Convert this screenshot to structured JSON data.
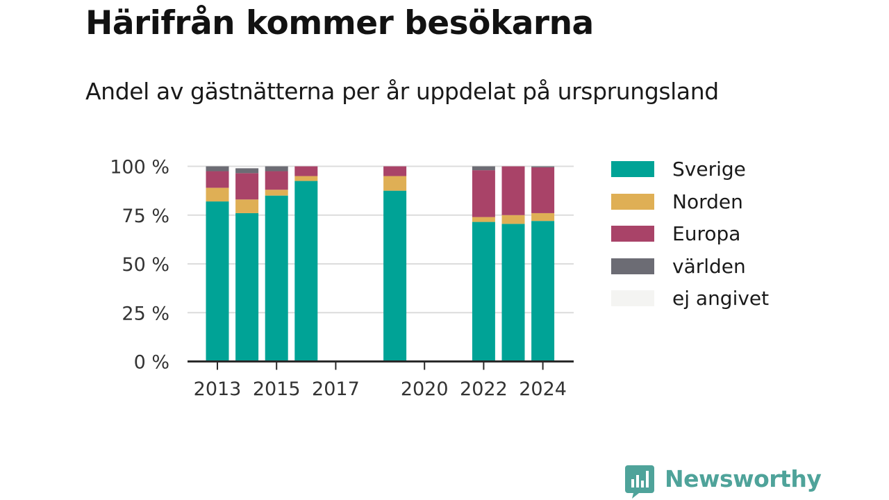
{
  "header": {
    "title": "Härifrån kommer besökarna",
    "subtitle": "Andel av gästnätterna per år uppdelat på ursprungsland"
  },
  "brand": {
    "name": "Newsworthy",
    "icon": "newsworthy-logo-icon",
    "color": "#4fa39a"
  },
  "chart_data": {
    "type": "bar",
    "stacked": true,
    "x": [
      2013,
      2014,
      2015,
      2016,
      2017,
      2018,
      2019,
      2020,
      2021,
      2022,
      2023,
      2024
    ],
    "x_tick_labels": [
      "2013",
      "2015",
      "2017",
      "2020",
      "2022",
      "2024"
    ],
    "x_tick_values": [
      2013,
      2015,
      2017,
      2020,
      2022,
      2024
    ],
    "y_tick_labels": [
      "0 %",
      "25 %",
      "50 %",
      "75 %",
      "100 %"
    ],
    "y_tick_values": [
      0,
      25,
      50,
      75,
      100
    ],
    "ylim": [
      0,
      100
    ],
    "grid": true,
    "legend_position": "right",
    "series": [
      {
        "name": "Sverige",
        "color": "#00a396",
        "values": [
          82,
          76,
          85,
          92.5,
          null,
          null,
          87.5,
          null,
          null,
          71.5,
          70.5,
          72
        ]
      },
      {
        "name": "Norden",
        "color": "#dfaf55",
        "values": [
          7,
          7,
          3,
          2.5,
          null,
          null,
          7.5,
          null,
          null,
          2.5,
          4.5,
          4
        ]
      },
      {
        "name": "Europa",
        "color": "#a94368",
        "values": [
          8.5,
          13.5,
          9.5,
          5,
          null,
          null,
          5,
          null,
          null,
          24,
          25,
          23.5
        ]
      },
      {
        "name": "världen",
        "color": "#6c6c74",
        "values": [
          2.5,
          2.5,
          2.5,
          0,
          null,
          null,
          0,
          null,
          null,
          2,
          0,
          0.5
        ]
      },
      {
        "name": "ej angivet",
        "color": "#f4f4f2",
        "values": [
          0,
          0,
          0,
          0,
          null,
          null,
          0,
          null,
          null,
          0,
          0,
          0
        ]
      }
    ]
  }
}
